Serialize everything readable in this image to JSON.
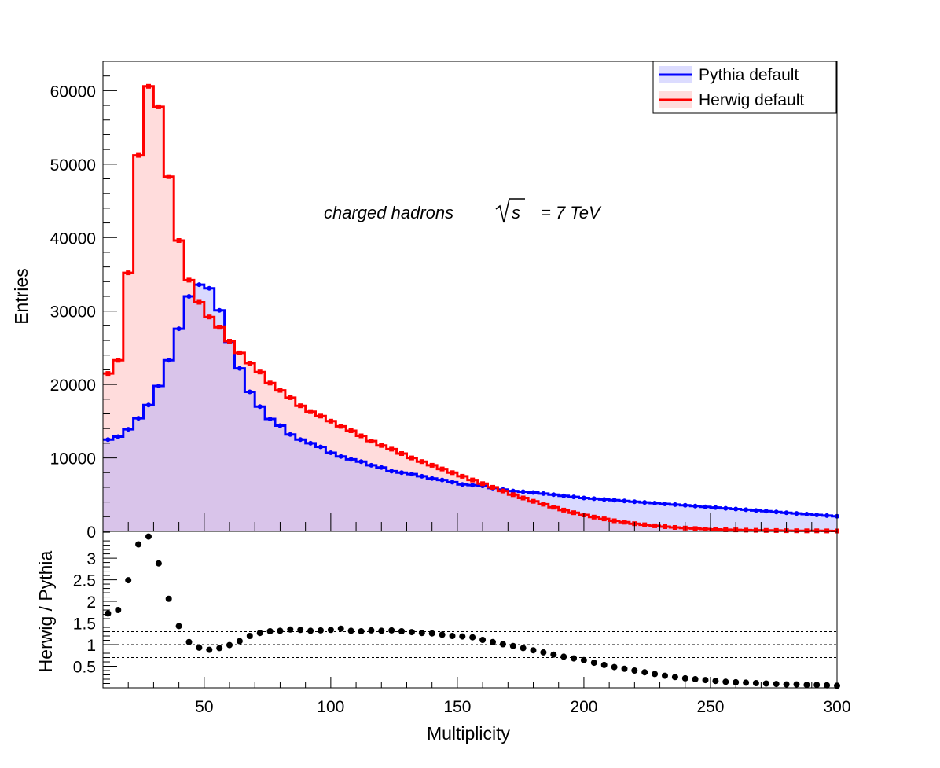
{
  "chart_data": [
    {
      "panel": "main",
      "type": "histogram",
      "title": "",
      "xlabel": "",
      "ylabel": "Entries",
      "xlim": [
        10,
        300
      ],
      "ylim": [
        0,
        64000
      ],
      "bin_width": 4,
      "bin_start": 10,
      "y_ticks": [
        0,
        10000,
        20000,
        30000,
        40000,
        50000,
        60000
      ],
      "y_tick_labels": [
        "0",
        "10000",
        "20000",
        "30000",
        "40000",
        "50000",
        "60000"
      ],
      "annotation": {
        "text": "charged hadrons",
        "energy_text": "= 7 TeV",
        "sqrt_arg": "s"
      },
      "legend": {
        "position": "top-right",
        "entries": [
          "Pythia default",
          "Herwig default"
        ]
      },
      "series": [
        {
          "name": "Pythia default",
          "color": "#0000ff",
          "fill": "#dcdcff",
          "values": [
            12500,
            12900,
            13900,
            15400,
            17200,
            19800,
            23300,
            27600,
            32000,
            33600,
            33100,
            30100,
            25800,
            22200,
            19000,
            17000,
            15300,
            14400,
            13200,
            12500,
            12000,
            11500,
            10700,
            10200,
            9800,
            9500,
            9000,
            8700,
            8200,
            8000,
            7800,
            7500,
            7200,
            7000,
            6700,
            6400,
            6300,
            6200,
            5900,
            5700,
            5500,
            5400,
            5300,
            5150,
            5000,
            4850,
            4700,
            4550,
            4450,
            4350,
            4250,
            4150,
            4050,
            3950,
            3850,
            3750,
            3650,
            3550,
            3450,
            3350,
            3250,
            3150,
            3050,
            2950,
            2850,
            2750,
            2650,
            2550,
            2450,
            2350,
            2250,
            2150,
            2050
          ]
        },
        {
          "name": "Herwig default",
          "color": "#ff0000",
          "fill": "#ffdcdc",
          "values": [
            21500,
            23300,
            35200,
            51200,
            60600,
            57800,
            48300,
            39600,
            34200,
            31200,
            29200,
            27800,
            25900,
            24300,
            22900,
            21700,
            20200,
            19200,
            18200,
            17100,
            16300,
            15700,
            15000,
            14300,
            13700,
            13000,
            12300,
            11700,
            11200,
            10600,
            10000,
            9500,
            9000,
            8500,
            8000,
            7500,
            7000,
            6500,
            6000,
            5500,
            5000,
            4550,
            4100,
            3700,
            3300,
            2900,
            2550,
            2250,
            1950,
            1700,
            1450,
            1250,
            1050,
            900,
            760,
            640,
            540,
            450,
            380,
            320,
            270,
            230,
            200,
            170,
            150,
            130,
            115,
            100,
            90,
            80,
            72,
            64,
            57
          ]
        }
      ]
    },
    {
      "panel": "ratio",
      "type": "scatter",
      "xlabel": "Multiplicity",
      "ylabel": "Herwig / Pythia",
      "xlim": [
        10,
        300
      ],
      "ylim": [
        0,
        3.62
      ],
      "x_ticks": [
        50,
        100,
        150,
        200,
        250,
        300
      ],
      "x_tick_labels": [
        "50",
        "100",
        "150",
        "200",
        "250",
        "300"
      ],
      "y_ticks": [
        0.5,
        1,
        1.5,
        2,
        2.5,
        3
      ],
      "y_tick_labels": [
        "0.5",
        "1",
        "1.5",
        "2",
        "2.5",
        "3"
      ],
      "reference_lines": [
        0.7,
        1.0,
        1.3
      ],
      "x": [
        12,
        16,
        20,
        24,
        28,
        32,
        36,
        40,
        44,
        48,
        52,
        56,
        60,
        64,
        68,
        72,
        76,
        80,
        84,
        88,
        92,
        96,
        100,
        104,
        108,
        112,
        116,
        120,
        124,
        128,
        132,
        136,
        140,
        144,
        148,
        152,
        156,
        160,
        164,
        168,
        172,
        176,
        180,
        184,
        188,
        192,
        196,
        200,
        204,
        208,
        212,
        216,
        220,
        224,
        228,
        232,
        236,
        240,
        244,
        248,
        252,
        256,
        260,
        264,
        268,
        272,
        276,
        280,
        284,
        288,
        292,
        296,
        300
      ],
      "y": [
        1.72,
        1.8,
        2.49,
        3.32,
        3.5,
        2.88,
        2.06,
        1.43,
        1.06,
        0.93,
        0.88,
        0.92,
        0.99,
        1.08,
        1.2,
        1.27,
        1.31,
        1.32,
        1.35,
        1.34,
        1.32,
        1.33,
        1.34,
        1.37,
        1.32,
        1.31,
        1.33,
        1.32,
        1.33,
        1.31,
        1.29,
        1.27,
        1.26,
        1.23,
        1.2,
        1.19,
        1.17,
        1.11,
        1.06,
        1.01,
        0.97,
        0.92,
        0.87,
        0.82,
        0.77,
        0.72,
        0.68,
        0.64,
        0.58,
        0.53,
        0.48,
        0.44,
        0.4,
        0.36,
        0.32,
        0.28,
        0.25,
        0.22,
        0.2,
        0.18,
        0.16,
        0.14,
        0.13,
        0.12,
        0.11,
        0.1,
        0.09,
        0.08,
        0.08,
        0.07,
        0.07,
        0.06,
        0.05
      ]
    }
  ]
}
